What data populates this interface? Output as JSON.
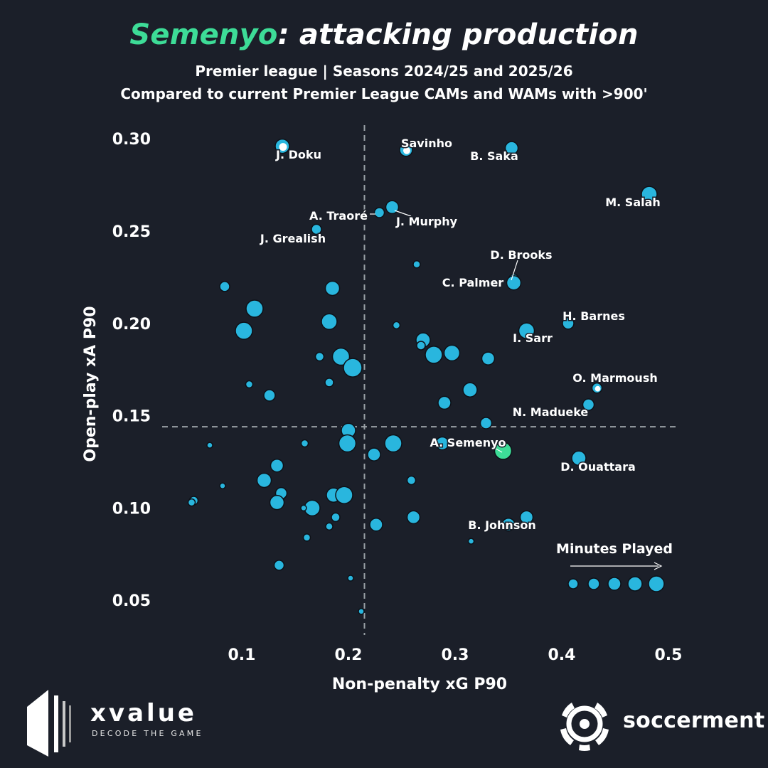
{
  "header": {
    "title_player": "Semenyo",
    "title_rest": ": attacking production",
    "subtitle1": "Premier league | Seasons 2024/25 and 2025/26",
    "subtitle2": "Compared to current Premier League CAMs and WAMs with >900'"
  },
  "colors": {
    "background": "#1b1f29",
    "point": "#29b6de",
    "point_stroke": "#0d1118",
    "highlight": "#3ddc97",
    "white": "#ffffff",
    "guide": "#9aa0a6"
  },
  "legend": {
    "label": "Minutes Played",
    "sizes": [
      7,
      8,
      9,
      10,
      11
    ]
  },
  "brands": {
    "left_name": "xvalue",
    "left_tagline": "DECODE THE GAME",
    "right_name": "soccerment"
  },
  "chart_data": {
    "type": "scatter",
    "title": "Semenyo: attacking production",
    "xlabel": "Non-penalty xG P90",
    "ylabel": "Open-play xA P90",
    "xlim": [
      0.0,
      0.5
    ],
    "ylim": [
      0.03,
      0.31
    ],
    "x_ticks": [
      0.1,
      0.2,
      0.3,
      0.4,
      0.5
    ],
    "x_tick_labels": [
      "0.1",
      "0.2",
      "0.3",
      "0.4",
      "0.5"
    ],
    "y_ticks": [
      0.05,
      0.1,
      0.15,
      0.2,
      0.25,
      0.3
    ],
    "y_tick_labels": [
      "0.05",
      "0.10",
      "0.15",
      "0.20",
      "0.25",
      "0.30"
    ],
    "reference_lines": {
      "x_mean": 0.215,
      "y_mean": 0.144
    },
    "labeled_points": [
      {
        "name": "J. Doku",
        "x": 0.138,
        "y": 0.296,
        "r": 10,
        "hollow": true
      },
      {
        "name": "Savinho",
        "x": 0.254,
        "y": 0.294,
        "r": 9,
        "hollow": true
      },
      {
        "name": "B. Saka",
        "x": 0.353,
        "y": 0.295,
        "r": 9
      },
      {
        "name": "M. Salah",
        "x": 0.482,
        "y": 0.27,
        "r": 11
      },
      {
        "name": "A. Traoré",
        "x": 0.229,
        "y": 0.26,
        "r": 7
      },
      {
        "name": "J. Murphy",
        "x": 0.241,
        "y": 0.263,
        "r": 9
      },
      {
        "name": "J. Grealish",
        "x": 0.17,
        "y": 0.251,
        "r": 7
      },
      {
        "name": "D. Brooks",
        "x": 0.355,
        "y": 0.224,
        "r": 7
      },
      {
        "name": "C. Palmer",
        "x": 0.355,
        "y": 0.222,
        "r": 10
      },
      {
        "name": "H. Barnes",
        "x": 0.406,
        "y": 0.2,
        "r": 8
      },
      {
        "name": "I. Sarr",
        "x": 0.367,
        "y": 0.196,
        "r": 11
      },
      {
        "name": "O. Marmoush",
        "x": 0.433,
        "y": 0.165,
        "r": 7,
        "hollow": true
      },
      {
        "name": "N. Madueke",
        "x": 0.425,
        "y": 0.156,
        "r": 8
      },
      {
        "name": "A. Semenyo",
        "x": 0.345,
        "y": 0.131,
        "r": 12,
        "highlight": true
      },
      {
        "name": "D. Ouattara",
        "x": 0.416,
        "y": 0.127,
        "r": 10
      },
      {
        "name": "B. Johnson",
        "x": 0.35,
        "y": 0.091,
        "r": 9
      }
    ],
    "other_points": [
      {
        "x": 0.084,
        "y": 0.22,
        "r": 7
      },
      {
        "x": 0.112,
        "y": 0.208,
        "r": 12
      },
      {
        "x": 0.102,
        "y": 0.196,
        "r": 12
      },
      {
        "x": 0.185,
        "y": 0.219,
        "r": 10
      },
      {
        "x": 0.182,
        "y": 0.201,
        "r": 11
      },
      {
        "x": 0.264,
        "y": 0.232,
        "r": 5
      },
      {
        "x": 0.245,
        "y": 0.199,
        "r": 5
      },
      {
        "x": 0.173,
        "y": 0.182,
        "r": 6
      },
      {
        "x": 0.193,
        "y": 0.182,
        "r": 12
      },
      {
        "x": 0.204,
        "y": 0.176,
        "r": 13
      },
      {
        "x": 0.107,
        "y": 0.167,
        "r": 5
      },
      {
        "x": 0.126,
        "y": 0.161,
        "r": 8
      },
      {
        "x": 0.182,
        "y": 0.168,
        "r": 6
      },
      {
        "x": 0.27,
        "y": 0.191,
        "r": 10
      },
      {
        "x": 0.268,
        "y": 0.188,
        "r": 6
      },
      {
        "x": 0.28,
        "y": 0.183,
        "r": 12
      },
      {
        "x": 0.297,
        "y": 0.184,
        "r": 11
      },
      {
        "x": 0.331,
        "y": 0.181,
        "r": 9
      },
      {
        "x": 0.314,
        "y": 0.164,
        "r": 10
      },
      {
        "x": 0.29,
        "y": 0.157,
        "r": 9
      },
      {
        "x": 0.329,
        "y": 0.146,
        "r": 8
      },
      {
        "x": 0.2,
        "y": 0.142,
        "r": 10
      },
      {
        "x": 0.199,
        "y": 0.135,
        "r": 12
      },
      {
        "x": 0.242,
        "y": 0.135,
        "r": 12
      },
      {
        "x": 0.224,
        "y": 0.129,
        "r": 9
      },
      {
        "x": 0.07,
        "y": 0.134,
        "r": 4
      },
      {
        "x": 0.159,
        "y": 0.135,
        "r": 5
      },
      {
        "x": 0.133,
        "y": 0.123,
        "r": 9
      },
      {
        "x": 0.121,
        "y": 0.115,
        "r": 10
      },
      {
        "x": 0.082,
        "y": 0.112,
        "r": 4
      },
      {
        "x": 0.137,
        "y": 0.108,
        "r": 8
      },
      {
        "x": 0.133,
        "y": 0.103,
        "r": 10
      },
      {
        "x": 0.186,
        "y": 0.107,
        "r": 10
      },
      {
        "x": 0.196,
        "y": 0.107,
        "r": 12
      },
      {
        "x": 0.055,
        "y": 0.104,
        "r": 6
      },
      {
        "x": 0.053,
        "y": 0.103,
        "r": 5
      },
      {
        "x": 0.166,
        "y": 0.1,
        "r": 11
      },
      {
        "x": 0.158,
        "y": 0.1,
        "r": 4
      },
      {
        "x": 0.188,
        "y": 0.095,
        "r": 6
      },
      {
        "x": 0.182,
        "y": 0.09,
        "r": 5
      },
      {
        "x": 0.161,
        "y": 0.084,
        "r": 5
      },
      {
        "x": 0.226,
        "y": 0.091,
        "r": 9
      },
      {
        "x": 0.261,
        "y": 0.095,
        "r": 9
      },
      {
        "x": 0.259,
        "y": 0.115,
        "r": 6
      },
      {
        "x": 0.288,
        "y": 0.135,
        "r": 9
      },
      {
        "x": 0.367,
        "y": 0.095,
        "r": 9
      },
      {
        "x": 0.315,
        "y": 0.082,
        "r": 4
      },
      {
        "x": 0.135,
        "y": 0.069,
        "r": 7
      },
      {
        "x": 0.202,
        "y": 0.062,
        "r": 4
      },
      {
        "x": 0.212,
        "y": 0.044,
        "r": 4
      }
    ]
  }
}
